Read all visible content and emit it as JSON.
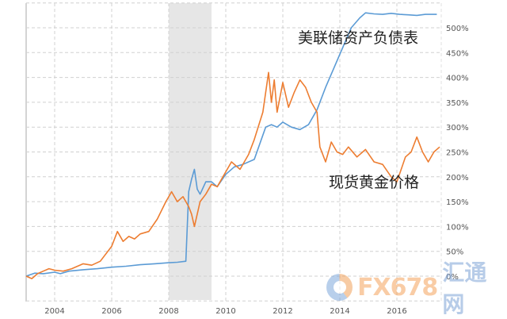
{
  "chart_data": {
    "type": "line",
    "title": "",
    "xlabel": "",
    "ylabel": "",
    "x_ticks": [
      "2004",
      "2006",
      "2008",
      "2010",
      "2012",
      "2014",
      "2016"
    ],
    "y_ticks": [
      "0%",
      "50%",
      "100%",
      "150%",
      "200%",
      "250%",
      "300%",
      "350%",
      "400%",
      "450%",
      "500%"
    ],
    "xlim": [
      2003.0,
      2017.5
    ],
    "ylim": [
      -50,
      550
    ],
    "grid": true,
    "y_axis_position": "right",
    "shaded_region": {
      "from": 2008.0,
      "to": 2009.5,
      "color": "#e6e6e6"
    },
    "annotations": [
      {
        "text": "美联储资产负债表",
        "x": 2014.0,
        "y": 480
      },
      {
        "text": "现货黄金价格",
        "x": 2014.5,
        "y": 200
      }
    ],
    "series": [
      {
        "name": "美联储资产负债表",
        "color": "#5b9bd5",
        "x": [
          2003.0,
          2003.3,
          2003.6,
          2004.0,
          2004.2,
          2004.5,
          2005.0,
          2005.5,
          2006.0,
          2006.5,
          2007.0,
          2007.5,
          2008.0,
          2008.3,
          2008.6,
          2008.7,
          2008.8,
          2008.9,
          2009.0,
          2009.1,
          2009.3,
          2009.5,
          2009.7,
          2010.0,
          2010.3,
          2010.6,
          2011.0,
          2011.4,
          2011.6,
          2011.8,
          2012.0,
          2012.3,
          2012.6,
          2012.9,
          2013.2,
          2013.5,
          2013.8,
          2014.1,
          2014.4,
          2014.7,
          2014.9,
          2015.2,
          2015.5,
          2015.8,
          2016.1,
          2016.4,
          2016.7,
          2017.0,
          2017.4
        ],
        "values": [
          0,
          6,
          5,
          8,
          5,
          10,
          13,
          15,
          18,
          20,
          23,
          25,
          27,
          28,
          30,
          170,
          195,
          215,
          175,
          165,
          190,
          190,
          180,
          205,
          220,
          225,
          235,
          300,
          305,
          300,
          310,
          300,
          295,
          305,
          335,
          380,
          420,
          460,
          500,
          520,
          530,
          528,
          527,
          529,
          527,
          526,
          525,
          527,
          527
        ]
      },
      {
        "name": "现货黄金价格",
        "color": "#ed7d31",
        "x": [
          2003.0,
          2003.2,
          2003.4,
          2003.6,
          2003.8,
          2004.0,
          2004.3,
          2004.6,
          2005.0,
          2005.3,
          2005.6,
          2006.0,
          2006.2,
          2006.4,
          2006.6,
          2006.8,
          2007.0,
          2007.3,
          2007.6,
          2007.9,
          2008.1,
          2008.3,
          2008.5,
          2008.7,
          2008.8,
          2008.9,
          2009.1,
          2009.3,
          2009.5,
          2009.7,
          2009.9,
          2010.2,
          2010.5,
          2010.8,
          2011.0,
          2011.3,
          2011.5,
          2011.6,
          2011.7,
          2011.8,
          2012.0,
          2012.2,
          2012.4,
          2012.6,
          2012.8,
          2013.0,
          2013.2,
          2013.3,
          2013.5,
          2013.7,
          2013.9,
          2014.1,
          2014.3,
          2014.6,
          2014.9,
          2015.2,
          2015.5,
          2015.8,
          2016.0,
          2016.3,
          2016.5,
          2016.7,
          2016.9,
          2017.1,
          2017.3,
          2017.5
        ],
        "values": [
          0,
          -5,
          5,
          10,
          15,
          12,
          10,
          15,
          25,
          22,
          30,
          60,
          90,
          70,
          80,
          75,
          85,
          90,
          115,
          150,
          170,
          150,
          160,
          140,
          125,
          100,
          150,
          165,
          185,
          180,
          200,
          230,
          215,
          245,
          275,
          330,
          410,
          350,
          395,
          330,
          390,
          340,
          370,
          395,
          380,
          350,
          330,
          260,
          230,
          270,
          250,
          245,
          260,
          240,
          255,
          230,
          225,
          200,
          190,
          240,
          250,
          280,
          250,
          230,
          250,
          260
        ]
      }
    ]
  },
  "watermark": {
    "brand": "FX678",
    "cn_name": "汇通网"
  }
}
